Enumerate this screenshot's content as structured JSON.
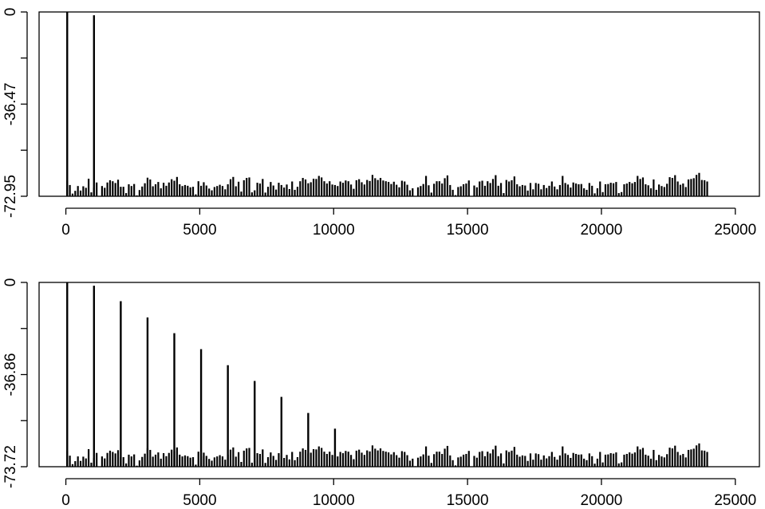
{
  "chart_data": [
    {
      "type": "bar",
      "title": "",
      "xlabel": "",
      "ylabel": "",
      "xlim": [
        -1000,
        25900
      ],
      "ylim": [
        -72.95,
        0
      ],
      "x_ticks": [
        0,
        5000,
        10000,
        15000,
        20000,
        25000
      ],
      "x_tick_labels": [
        "0",
        "5000",
        "10000",
        "15000",
        "20000",
        "25000"
      ],
      "y_ticks": [
        0,
        -36.47,
        -72.95
      ],
      "y_tick_labels": [
        "0",
        "-36.47",
        "-72.95"
      ],
      "floor": -72.95,
      "grid": false,
      "legend": "none",
      "bar_spacing": 100,
      "peaks": [
        {
          "x": 50,
          "y": 0
        },
        {
          "x": 1050,
          "y": -1.3
        }
      ],
      "noise_levels": [
        -66.8,
        -68.5,
        -71.9,
        -70.8,
        -68.9,
        -70.7,
        -69.0,
        -69.6,
        -66.0,
        -71.4,
        -69.5,
        -67.5,
        -72.9,
        -68.9,
        -69.6,
        -67.5,
        -66.6,
        -67.0,
        -67.7,
        -66.4,
        -69.2,
        -69.2,
        -71.7,
        -68.2,
        -68.9,
        -68.1,
        -72.6,
        -70.5,
        -69.1,
        -67.8,
        -65.6,
        -66.3,
        -69.0,
        -68.2,
        -67.3,
        -69.8,
        -67.6,
        -68.8,
        -67.5,
        -66.2,
        -66.8,
        -65.3,
        -68.2,
        -68.9,
        -68.5,
        -68.8,
        -69.4,
        -69.2,
        -72.2,
        -67.0,
        -68.8,
        -67.4,
        -68.7,
        -69.9,
        -70.6,
        -69.3,
        -68.9,
        -68.4,
        -68.9,
        -70.2,
        -68.2,
        -66.2,
        -65.3,
        -69.0,
        -67.2,
        -71.1,
        -66.6,
        -65.7,
        -65.5,
        -71.4,
        -70.6,
        -67.6,
        -67.9,
        -66.1,
        -71.5,
        -69.2,
        -67.3,
        -68.7,
        -70.3,
        -67.6,
        -68.5,
        -69.5,
        -68.3,
        -70.1,
        -67.1,
        -70.4,
        -69.2,
        -67.0,
        -65.7,
        -66.3,
        -67.8,
        -67.4,
        -66.0,
        -66.1,
        -64.9,
        -65.5,
        -67.0,
        -67.9,
        -67.0,
        -68.3,
        -68.5,
        -68.9,
        -67.1,
        -67.6,
        -66.7,
        -67.0,
        -68.3,
        -70.0,
        -66.6,
        -66.2,
        -67.4,
        -68.3,
        -66.5,
        -66.9,
        -64.5,
        -65.8,
        -66.5,
        -65.7,
        -66.7,
        -67.0,
        -67.3,
        -68.1,
        -67.2,
        -68.4,
        -69.4,
        -66.8,
        -67.1,
        -68.4,
        -70.6,
        -69.8,
        -72.8,
        -69.4,
        -68.9,
        -68.1,
        -64.9,
        -68.6,
        -71.5,
        -68.0,
        -67.0,
        -67.0,
        -67.9,
        -65.8,
        -64.7,
        -68.5,
        -70.4,
        -72.5,
        -69.3,
        -69.0,
        -68.2,
        -67.9,
        -66.7,
        -72.9,
        -68.7,
        -69.4,
        -67.1,
        -66.8,
        -68.8,
        -67.0,
        -67.7,
        -66.1,
        -64.6,
        -68.8,
        -67.7,
        -71.7,
        -66.5,
        -67.1,
        -66.6,
        -65.1,
        -68.2,
        -69.0,
        -68.5,
        -68.7,
        -70.7,
        -67.7,
        -70.2,
        -67.7,
        -68.0,
        -70.2,
        -68.5,
        -69.7,
        -68.8,
        -67.1,
        -69.1,
        -70.2,
        -68.5,
        -64.9,
        -67.7,
        -68.3,
        -69.5,
        -67.5,
        -67.9,
        -68.2,
        -68.1,
        -69.8,
        -70.4,
        -67.7,
        -68.8,
        -71.8,
        -69.8,
        -67.1,
        -71.3,
        -68.2,
        -68.1,
        -67.6,
        -67.8,
        -67.3,
        -71.7,
        -71.3,
        -68.2,
        -67.9,
        -67.3,
        -67.8,
        -67.3,
        -64.9,
        -66.1,
        -65.5,
        -68.2,
        -68.6,
        -69.8,
        -66.3,
        -70.4,
        -68.3,
        -68.9,
        -69.3,
        -68.0,
        -65.4,
        -65.7,
        -64.6,
        -67.1,
        -68.4,
        -67.9,
        -69.3,
        -66.3,
        -66.1,
        -65.8,
        -64.5,
        -63.7,
        -66.5,
        -66.6,
        -67.1
      ],
      "description_note": ""
    },
    {
      "type": "bar",
      "title": "",
      "xlabel": "",
      "ylabel": "",
      "xlim": [
        -1000,
        25900
      ],
      "ylim": [
        -73.72,
        0
      ],
      "x_ticks": [
        0,
        5000,
        10000,
        15000,
        20000,
        25000
      ],
      "x_tick_labels": [
        "0",
        "5000",
        "10000",
        "15000",
        "20000",
        "25000"
      ],
      "y_ticks": [
        0,
        -36.86,
        -73.72
      ],
      "y_tick_labels": [
        "0",
        "-36.86",
        "-73.72"
      ],
      "floor": -73.72,
      "grid": false,
      "legend": "none",
      "bar_spacing": 100,
      "peaks": [
        {
          "x": 50,
          "y": 0
        },
        {
          "x": 1050,
          "y": -1.3
        },
        {
          "x": 2050,
          "y": -7.5
        },
        {
          "x": 3050,
          "y": -14.0
        },
        {
          "x": 4050,
          "y": -20.3
        },
        {
          "x": 5050,
          "y": -26.7
        },
        {
          "x": 6050,
          "y": -33.1
        },
        {
          "x": 7050,
          "y": -39.4
        },
        {
          "x": 8050,
          "y": -45.8
        },
        {
          "x": 9050,
          "y": -52.2
        },
        {
          "x": 10050,
          "y": -58.5
        }
      ],
      "noise_levels": [
        -67.5,
        -69.3,
        -72.7,
        -71.5,
        -69.6,
        -71.4,
        -69.7,
        -70.4,
        -66.7,
        -72.1,
        -70.2,
        -68.2,
        -73.6,
        -69.6,
        -70.4,
        -68.2,
        -67.3,
        -67.8,
        -68.4,
        -67.1,
        -69.9,
        -69.9,
        -72.4,
        -68.9,
        -69.6,
        -68.8,
        -73.3,
        -71.2,
        -69.8,
        -68.5,
        -66.3,
        -67.0,
        -69.7,
        -68.9,
        -68.0,
        -70.5,
        -68.3,
        -69.5,
        -68.2,
        -66.9,
        -67.5,
        -66.0,
        -68.9,
        -69.6,
        -69.2,
        -69.5,
        -70.1,
        -69.9,
        -72.9,
        -67.7,
        -69.5,
        -68.1,
        -69.4,
        -70.6,
        -71.3,
        -70.0,
        -69.6,
        -69.1,
        -69.6,
        -70.9,
        -68.9,
        -66.9,
        -66.0,
        -69.7,
        -67.9,
        -71.8,
        -67.3,
        -66.4,
        -66.2,
        -72.1,
        -71.3,
        -68.3,
        -68.6,
        -66.8,
        -72.2,
        -69.9,
        -68.0,
        -69.4,
        -71.0,
        -68.3,
        -69.2,
        -70.2,
        -69.0,
        -70.8,
        -67.8,
        -71.1,
        -69.9,
        -67.7,
        -66.4,
        -67.0,
        -68.5,
        -68.1,
        -66.7,
        -66.8,
        -65.6,
        -66.2,
        -67.7,
        -68.6,
        -67.7,
        -69.0,
        -69.2,
        -69.6,
        -67.8,
        -68.3,
        -67.4,
        -67.7,
        -69.0,
        -70.7,
        -67.3,
        -66.9,
        -68.1,
        -69.0,
        -67.2,
        -67.6,
        -65.2,
        -66.5,
        -67.2,
        -66.4,
        -67.4,
        -67.7,
        -68.0,
        -68.8,
        -67.9,
        -69.1,
        -70.1,
        -67.5,
        -67.8,
        -69.1,
        -71.3,
        -70.5,
        -73.5,
        -70.1,
        -69.6,
        -68.8,
        -65.6,
        -69.3,
        -72.2,
        -68.7,
        -67.7,
        -67.7,
        -68.6,
        -66.5,
        -65.4,
        -69.2,
        -71.1,
        -73.2,
        -70.0,
        -69.7,
        -68.9,
        -68.6,
        -67.4,
        -73.6,
        -69.4,
        -70.1,
        -67.8,
        -67.5,
        -69.5,
        -67.7,
        -68.4,
        -66.8,
        -65.3,
        -69.5,
        -68.4,
        -72.4,
        -67.2,
        -67.8,
        -67.3,
        -65.8,
        -68.9,
        -69.7,
        -69.2,
        -69.4,
        -71.4,
        -68.4,
        -70.9,
        -68.4,
        -68.7,
        -70.9,
        -69.2,
        -70.4,
        -69.5,
        -67.8,
        -69.8,
        -70.9,
        -69.2,
        -65.6,
        -68.4,
        -69.0,
        -70.2,
        -68.2,
        -68.6,
        -68.9,
        -68.8,
        -70.5,
        -71.1,
        -68.4,
        -69.5,
        -72.5,
        -70.5,
        -67.8,
        -72.0,
        -68.9,
        -68.8,
        -68.3,
        -68.5,
        -68.0,
        -72.4,
        -72.0,
        -68.9,
        -68.6,
        -68.0,
        -68.5,
        -68.0,
        -65.6,
        -66.8,
        -66.2,
        -68.9,
        -69.3,
        -70.5,
        -67.0,
        -71.1,
        -69.0,
        -69.6,
        -70.0,
        -68.7,
        -66.1,
        -66.4,
        -65.3,
        -67.8,
        -69.1,
        -68.6,
        -70.0,
        -67.0,
        -66.8,
        -66.5,
        -65.2,
        -64.4,
        -67.2,
        -67.3,
        -67.8
      ]
    }
  ]
}
